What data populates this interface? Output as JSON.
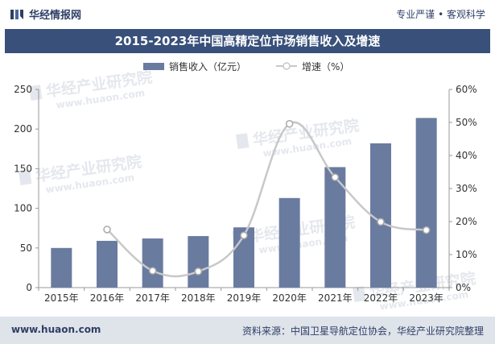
{
  "header": {
    "brand_name": "华经情报网",
    "slogan": "专业严谨 • 客观科学"
  },
  "footer": {
    "url": "www.huaon.com",
    "source": "资料来源：中国卫星导航定位协会，华经产业研究院整理"
  },
  "watermark": {
    "text_cn": "华经产业研究院",
    "text_url": "www.huaon.com"
  },
  "colors": {
    "bar": "#6a7ba0",
    "line": "#c8c8c8",
    "title_bg": "#38507a",
    "brand": "#2e3f66"
  },
  "chart_data": {
    "type": "bar",
    "title": "2015-2023年中国高精定位市场销售收入及增速",
    "categories": [
      "2015年",
      "2016年",
      "2017年",
      "2018年",
      "2019年",
      "2020年",
      "2021年",
      "2022年",
      "2023年"
    ],
    "series": [
      {
        "name": "销售收入（亿元）",
        "type": "bar",
        "axis": "left",
        "values": [
          50,
          59,
          62,
          65,
          76,
          113,
          152,
          182,
          214
        ]
      },
      {
        "name": "增速（%）",
        "type": "line",
        "axis": "right",
        "values": [
          null,
          17.6,
          5.1,
          4.9,
          15.8,
          49.6,
          33.4,
          19.9,
          17.4
        ]
      }
    ],
    "left_axis": {
      "min": 0,
      "max": 250,
      "ticks": [
        0,
        50,
        100,
        150,
        200,
        250
      ]
    },
    "right_axis": {
      "min": 0,
      "max": 60,
      "ticks": [
        "0%",
        "10%",
        "20%",
        "30%",
        "40%",
        "50%",
        "60%"
      ]
    },
    "legend_position": "top",
    "grid": false
  }
}
